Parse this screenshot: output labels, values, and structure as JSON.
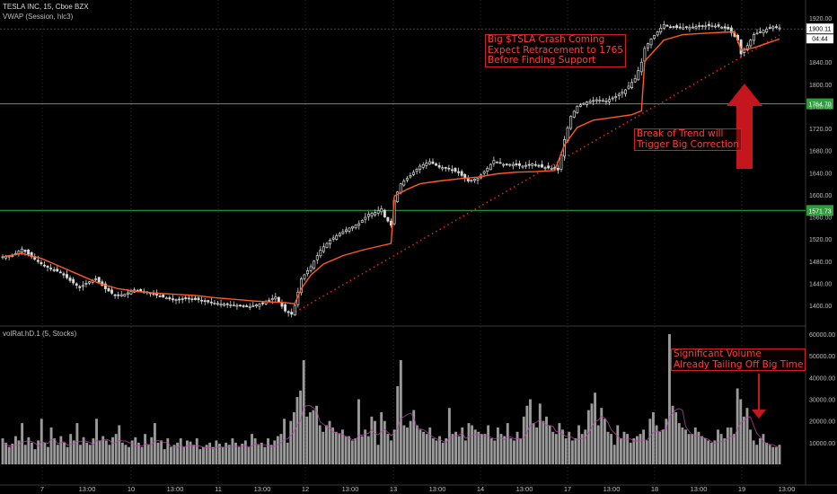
{
  "header": {
    "symbol_line": "TESLA INC, 15, Cboe BZX",
    "indicator_line": "VWAP (Session, hlc3)",
    "volume_title": "volRat.hD.1 (5, Stocks)"
  },
  "price_axis": {
    "ticks": [
      "1920.00",
      "1880.00",
      "1840.00",
      "1800.00",
      "1760.00",
      "1720.00",
      "1680.00",
      "1640.00",
      "1600.00",
      "1560.00",
      "1520.00",
      "1480.00",
      "1440.00",
      "1400.00"
    ],
    "last_price": "1900.11",
    "countdown": "04:44"
  },
  "volume_axis": {
    "ticks": [
      "60000.00",
      "50000.00",
      "40000.00",
      "30000.00",
      "20000.00",
      "10000.00"
    ]
  },
  "time_axis": {
    "labels": [
      "7",
      "13:00",
      "10",
      "13:00",
      "11",
      "13:00",
      "12",
      "13:00",
      "13",
      "13:00",
      "14",
      "13:00",
      "17",
      "13:00",
      "18",
      "13:00",
      "19",
      "13:00"
    ]
  },
  "levels": [
    {
      "label": "1764.70",
      "value": 1764.7
    },
    {
      "label": "1571.73",
      "value": 1571.73
    }
  ],
  "annotations": {
    "crash_note": "Big $TSLA Crash Coming\nExpect Retracement to 1765\nBefore Finding Support",
    "trend_note": "Break of Trend will\nTrigger Big Correction",
    "volume_note": "Significant Volume\nAlready Tailing Off Big Time"
  },
  "colors": {
    "background": "#000000",
    "candle": "#d9d9d9",
    "vwap": "#ff5a1f",
    "level_line": "#2e9e3c",
    "trendline": "#e02020",
    "arrow": "#c4161c",
    "volume_bar": "#9a9a9a",
    "volume_ma": "#b04aa0"
  },
  "chart_data": [
    {
      "type": "candlestick",
      "title": "TESLA INC, 15, Cboe BZX",
      "ylim": [
        1370,
        1935
      ],
      "x_session_labels": [
        "7",
        "10",
        "11",
        "12",
        "13",
        "14",
        "17",
        "18",
        "19"
      ],
      "close_path": [
        [
          0,
          1488
        ],
        [
          3,
          1490
        ],
        [
          6,
          1502
        ],
        [
          9,
          1488
        ],
        [
          12,
          1475
        ],
        [
          15,
          1466
        ],
        [
          18,
          1460
        ],
        [
          21,
          1445
        ],
        [
          24,
          1432
        ],
        [
          26,
          1440
        ],
        [
          29,
          1448
        ],
        [
          32,
          1430
        ],
        [
          35,
          1418
        ],
        [
          38,
          1420
        ],
        [
          41,
          1428
        ],
        [
          44,
          1425
        ],
        [
          47,
          1420
        ],
        [
          50,
          1415
        ],
        [
          53,
          1410
        ],
        [
          57,
          1412
        ],
        [
          61,
          1410
        ],
        [
          65,
          1405
        ],
        [
          69,
          1402
        ],
        [
          73,
          1400
        ],
        [
          77,
          1398
        ],
        [
          81,
          1404
        ],
        [
          85,
          1415
        ],
        [
          88,
          1390
        ],
        [
          90,
          1384
        ],
        [
          91,
          1400
        ],
        [
          93,
          1448
        ],
        [
          96,
          1470
        ],
        [
          99,
          1500
        ],
        [
          102,
          1518
        ],
        [
          105,
          1530
        ],
        [
          108,
          1540
        ],
        [
          111,
          1548
        ],
        [
          114,
          1565
        ],
        [
          116,
          1568
        ],
        [
          118,
          1575
        ],
        [
          119,
          1560
        ],
        [
          121,
          1545
        ],
        [
          122,
          1590
        ],
        [
          124,
          1620
        ],
        [
          127,
          1635
        ],
        [
          130,
          1652
        ],
        [
          133,
          1660
        ],
        [
          136,
          1650
        ],
        [
          139,
          1648
        ],
        [
          142,
          1640
        ],
        [
          145,
          1625
        ],
        [
          148,
          1630
        ],
        [
          151,
          1648
        ],
        [
          153,
          1662
        ],
        [
          156,
          1655
        ],
        [
          159,
          1655
        ],
        [
          162,
          1652
        ],
        [
          165,
          1656
        ],
        [
          168,
          1650
        ],
        [
          171,
          1648
        ],
        [
          173,
          1645
        ],
        [
          175,
          1700
        ],
        [
          177,
          1742
        ],
        [
          179,
          1760
        ],
        [
          182,
          1768
        ],
        [
          185,
          1772
        ],
        [
          188,
          1770
        ],
        [
          191,
          1778
        ],
        [
          194,
          1790
        ],
        [
          197,
          1810
        ],
        [
          199,
          1840
        ],
        [
          200,
          1865
        ],
        [
          202,
          1882
        ],
        [
          204,
          1895
        ],
        [
          206,
          1908
        ],
        [
          208,
          1904
        ],
        [
          211,
          1902
        ],
        [
          214,
          1903
        ],
        [
          217,
          1905
        ],
        [
          220,
          1906
        ],
        [
          223,
          1905
        ],
        [
          226,
          1900
        ],
        [
          229,
          1880
        ],
        [
          230,
          1855
        ],
        [
          232,
          1870
        ],
        [
          234,
          1890
        ],
        [
          236,
          1895
        ],
        [
          238,
          1900
        ],
        [
          240,
          1904
        ],
        [
          242,
          1902
        ]
      ],
      "vwap_path": [
        [
          0,
          1488
        ],
        [
          6,
          1494
        ],
        [
          12,
          1485
        ],
        [
          18,
          1470
        ],
        [
          24,
          1455
        ],
        [
          30,
          1440
        ],
        [
          36,
          1430
        ],
        [
          42,
          1425
        ],
        [
          48,
          1422
        ],
        [
          54,
          1420
        ],
        [
          60,
          1418
        ],
        [
          66,
          1414
        ],
        [
          72,
          1411
        ],
        [
          78,
          1408
        ],
        [
          84,
          1406
        ],
        [
          88,
          1405
        ],
        [
          91,
          1403
        ],
        [
          93,
          1430
        ],
        [
          96,
          1455
        ],
        [
          100,
          1475
        ],
        [
          106,
          1490
        ],
        [
          112,
          1500
        ],
        [
          118,
          1508
        ],
        [
          121,
          1512
        ],
        [
          122,
          1598
        ],
        [
          126,
          1610
        ],
        [
          130,
          1620
        ],
        [
          136,
          1625
        ],
        [
          142,
          1629
        ],
        [
          148,
          1632
        ],
        [
          154,
          1638
        ],
        [
          160,
          1641
        ],
        [
          166,
          1642
        ],
        [
          172,
          1644
        ],
        [
          175,
          1690
        ],
        [
          179,
          1722
        ],
        [
          184,
          1735
        ],
        [
          190,
          1740
        ],
        [
          196,
          1745
        ],
        [
          199,
          1752
        ],
        [
          200,
          1842
        ],
        [
          206,
          1880
        ],
        [
          212,
          1890
        ],
        [
          218,
          1892
        ],
        [
          224,
          1894
        ],
        [
          228,
          1895
        ],
        [
          230,
          1862
        ],
        [
          234,
          1866
        ],
        [
          238,
          1874
        ],
        [
          242,
          1882
        ]
      ],
      "levels": [
        1764.7,
        1571.73
      ],
      "trendline": [
        [
          90,
          1384
        ],
        [
          242,
          1889
        ]
      ]
    },
    {
      "type": "bar",
      "title": "volRat.hD.1 (5, Stocks)",
      "ylim": [
        0,
        65000
      ],
      "series": [
        {
          "values": [
            12000,
            10000,
            8000,
            9500,
            13000,
            11000,
            19000,
            9000,
            12500,
            10000,
            7000,
            11000,
            21000,
            10000,
            8000,
            17000,
            12000,
            9000,
            13000,
            10000,
            8000,
            14000,
            11000,
            19000,
            9000,
            12500,
            10000,
            9000,
            12000,
            21000,
            11000,
            13000,
            11000,
            9000,
            12500,
            14000,
            18000,
            10000,
            9000,
            8000,
            11000,
            12500,
            10000,
            8000,
            14000,
            9000,
            12500,
            19000,
            10000,
            11000,
            7000,
            12000,
            8000,
            9000,
            10000,
            12000,
            8000,
            11000,
            10500,
            9000,
            12000,
            7000,
            8000,
            9000,
            10000,
            8000,
            11000,
            9500,
            8000,
            10000,
            9000,
            12000,
            10000,
            8000,
            9500,
            11000,
            8000,
            14000,
            12000,
            9000,
            10000,
            8000,
            12000,
            9000,
            11000,
            13000,
            14000,
            21000,
            10000,
            20000,
            24000,
            31000,
            34000,
            48000,
            22000,
            24000,
            25000,
            27000,
            18000,
            15000,
            18000,
            20000,
            17000,
            15000,
            14000,
            16000,
            13000,
            13000,
            11000,
            12000,
            30000,
            13000,
            16000,
            13000,
            22000,
            20000,
            9000,
            24000,
            20000,
            14000,
            11000,
            16000,
            36000,
            48000,
            18000,
            17000,
            20000,
            25000,
            18000,
            16000,
            15000,
            14000,
            17000,
            12000,
            11000,
            13000,
            10000,
            12000,
            26000,
            14000,
            15000,
            13000,
            17000,
            11000,
            19000,
            18000,
            16000,
            15000,
            14000,
            14000,
            18000,
            12000,
            11000,
            17000,
            14000,
            13000,
            19000,
            12000,
            11000,
            15000,
            12000,
            22000,
            27000,
            30000,
            19000,
            17000,
            28000,
            20000,
            22000,
            18000,
            15000,
            14000,
            19000,
            16000,
            12000,
            15000,
            11000,
            12000,
            18000,
            14000,
            16000,
            25000,
            28000,
            33000,
            18000,
            26000,
            21000,
            15000,
            14000,
            9000,
            18000,
            12000,
            15000,
            14000,
            10000,
            12000,
            13000,
            14000,
            16000,
            11000,
            21000,
            24000,
            18000,
            15000,
            16000,
            21000,
            60000,
            27000,
            24000,
            19000,
            17000,
            16000,
            14000,
            14000,
            17000,
            15000,
            13000,
            12000,
            11000,
            10000,
            11000,
            16000,
            14000,
            12000,
            17000,
            17000,
            14000,
            35000,
            30000,
            22000,
            26000,
            16000,
            11000,
            9000,
            12000,
            14000,
            10000,
            9000,
            8000,
            8000,
            9000
          ]
        }
      ]
    }
  ]
}
